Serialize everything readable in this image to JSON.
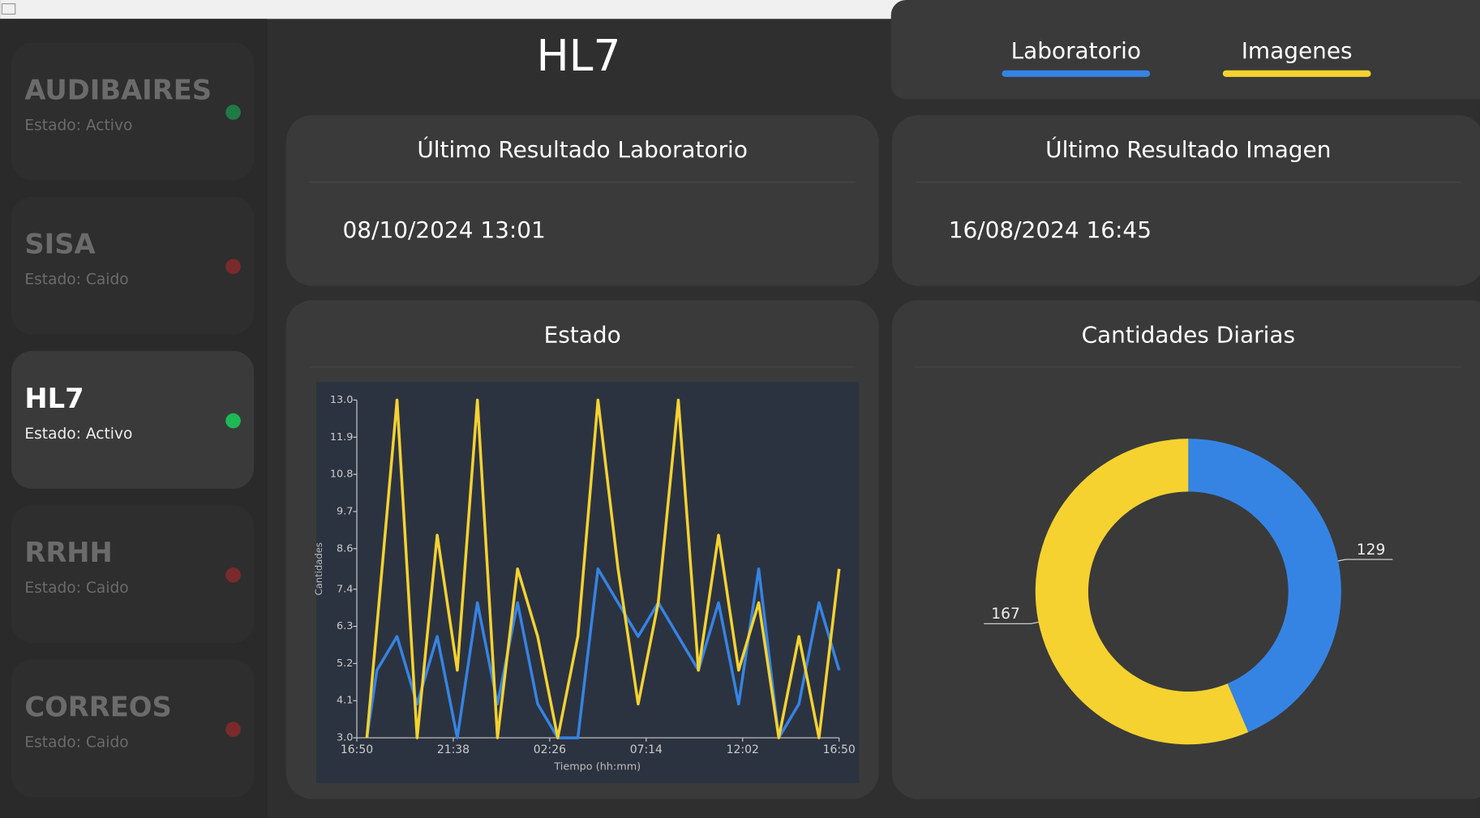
{
  "sidebar": {
    "items": [
      {
        "name": "AUDIBAIRES",
        "status": "Estado: Activo",
        "dot": "#1f7a45",
        "selected": false
      },
      {
        "name": "SISA",
        "status": "Estado: Caido",
        "dot": "#7a2a2a",
        "selected": false
      },
      {
        "name": "HL7",
        "status": "Estado: Activo",
        "dot": "#1db954",
        "selected": true
      },
      {
        "name": "RRHH",
        "status": "Estado: Caido",
        "dot": "#7a2a2a",
        "selected": false
      },
      {
        "name": "CORREOS",
        "status": "Estado: Caido",
        "dot": "#7a2a2a",
        "selected": false
      }
    ]
  },
  "header": {
    "title": "HL7",
    "tabs": [
      {
        "label": "Laboratorio",
        "color": "#3584e4"
      },
      {
        "label": "Imagenes",
        "color": "#f5d230"
      }
    ]
  },
  "cards": [
    {
      "title": "Último Resultado Laboratorio",
      "value": "08/10/2024 13:01"
    },
    {
      "title": "Último Resultado Imagen",
      "value": "16/08/2024 16:45"
    }
  ],
  "chart_data": [
    {
      "type": "line",
      "title": "Estado",
      "x_label": "Tiempo (hh:mm)",
      "y_label": "Cantidades",
      "x": [
        0.5,
        1,
        2,
        3,
        4,
        5,
        6,
        7,
        8,
        9,
        10,
        11,
        12,
        13,
        14,
        15,
        16,
        17,
        18,
        19,
        20,
        21,
        22,
        23,
        24
      ],
      "series": [
        {
          "name": "Laboratorio",
          "color": "#3584e4",
          "values": [
            3,
            5,
            6,
            4,
            6,
            3,
            7,
            4,
            7,
            4,
            3,
            3,
            8,
            7,
            6,
            7,
            6,
            5,
            7,
            4,
            8,
            3,
            4,
            7,
            5
          ]
        },
        {
          "name": "Imagenes",
          "color": "#f5d230",
          "values": [
            3,
            6.3,
            13,
            3,
            9,
            5,
            13,
            3,
            8,
            6,
            3,
            6,
            13,
            8,
            4,
            7,
            13,
            5,
            9,
            5,
            7,
            3,
            6,
            3,
            8
          ]
        }
      ],
      "xlim": [
        0,
        24
      ],
      "xticks": [
        {
          "value": 0,
          "label": "16:50"
        },
        {
          "value": 4.8,
          "label": "21:38"
        },
        {
          "value": 9.6,
          "label": "02:26"
        },
        {
          "value": 14.4,
          "label": "07:14"
        },
        {
          "value": 19.2,
          "label": "12:02"
        },
        {
          "value": 24,
          "label": "16:50"
        }
      ],
      "ylim": [
        3,
        13
      ],
      "yticks": [
        {
          "value": 3,
          "label": "3.0"
        },
        {
          "value": 4.1,
          "label": "4.1"
        },
        {
          "value": 5.2,
          "label": "5.2"
        },
        {
          "value": 6.3,
          "label": "6.3"
        },
        {
          "value": 7.4,
          "label": "7.4"
        },
        {
          "value": 8.6,
          "label": "8.6"
        },
        {
          "value": 9.7,
          "label": "9.7"
        },
        {
          "value": 10.8,
          "label": "10.8"
        },
        {
          "value": 11.9,
          "label": "11.9"
        },
        {
          "value": 13,
          "label": "13.0"
        }
      ]
    },
    {
      "type": "donut",
      "title": "Cantidades Diarias",
      "categories": [
        "Laboratorio",
        "Imagenes"
      ],
      "values": [
        129,
        167
      ],
      "colors": [
        "#3584e4",
        "#f5d230"
      ]
    }
  ]
}
